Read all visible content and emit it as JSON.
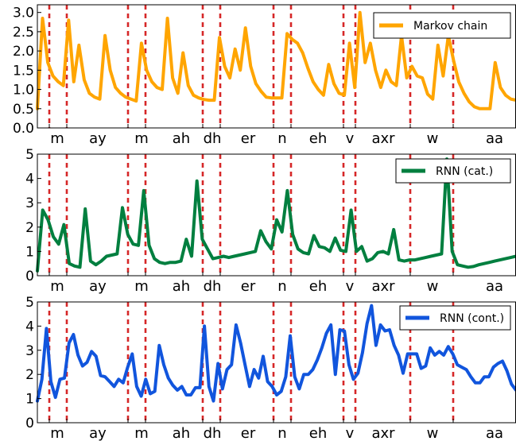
{
  "chart_data": [
    {
      "type": "line",
      "series": [
        {
          "name": "Markov chain",
          "color": "#ffa500"
        }
      ],
      "ylim": [
        0,
        3.2
      ],
      "yticks": [
        "0.0",
        "0.5",
        "1.0",
        "1.5",
        "2.0",
        "2.5",
        "3.0"
      ],
      "ytick_values": [
        0,
        0.5,
        1.0,
        1.5,
        2.0,
        2.5,
        3.0
      ],
      "legend_position": "top-right",
      "values": [
        0.5,
        2.85,
        1.7,
        1.35,
        1.2,
        1.1,
        2.8,
        1.2,
        2.15,
        1.25,
        0.9,
        0.8,
        0.75,
        2.4,
        1.5,
        1.05,
        0.9,
        0.8,
        0.75,
        0.7,
        2.2,
        1.5,
        1.2,
        1.05,
        1.0,
        2.85,
        1.3,
        0.9,
        1.95,
        1.1,
        0.85,
        0.78,
        0.74,
        0.72,
        0.72,
        2.35,
        1.6,
        1.3,
        2.05,
        1.5,
        2.6,
        1.6,
        1.15,
        0.95,
        0.8,
        0.78,
        0.78,
        0.78,
        2.45,
        2.3,
        2.2,
        1.95,
        1.55,
        1.2,
        1.0,
        0.85,
        1.65,
        1.15,
        0.9,
        0.85,
        2.2,
        1.05,
        3.0,
        1.7,
        2.2,
        1.5,
        1.05,
        1.5,
        1.2,
        1.1,
        2.4,
        1.3,
        1.6,
        1.35,
        1.3,
        0.88,
        0.75,
        2.15,
        1.35,
        2.4,
        1.75,
        1.2,
        0.9,
        0.68,
        0.55,
        0.5,
        0.5,
        0.5,
        1.7,
        1.05,
        0.85,
        0.75,
        0.72
      ]
    },
    {
      "type": "line",
      "series": [
        {
          "name": "RNN (cat.)",
          "color": "#007f3f"
        }
      ],
      "ylim": [
        0,
        5
      ],
      "yticks": [
        "0",
        "1",
        "2",
        "3",
        "4",
        "5"
      ],
      "ytick_values": [
        0,
        1,
        2,
        3,
        4,
        5
      ],
      "legend_position": "top-right",
      "values": [
        0.2,
        2.7,
        2.3,
        1.6,
        1.3,
        2.1,
        0.5,
        0.4,
        0.35,
        2.75,
        0.6,
        0.45,
        0.6,
        0.8,
        0.85,
        0.9,
        2.8,
        1.7,
        1.3,
        1.25,
        3.5,
        1.25,
        0.7,
        0.55,
        0.5,
        0.55,
        0.55,
        0.6,
        1.5,
        0.8,
        3.9,
        1.5,
        1.1,
        0.7,
        0.75,
        0.8,
        0.75,
        0.8,
        0.85,
        0.9,
        0.95,
        1.0,
        1.85,
        1.4,
        1.1,
        2.3,
        1.8,
        3.5,
        1.7,
        1.1,
        0.95,
        0.9,
        1.65,
        1.2,
        1.15,
        1.0,
        1.55,
        1.05,
        1.0,
        2.7,
        1.0,
        1.2,
        0.6,
        0.7,
        0.95,
        1.0,
        0.9,
        1.9,
        0.65,
        0.6,
        0.65,
        0.65,
        0.7,
        0.75,
        0.8,
        0.85,
        0.9,
        4.8,
        1.0,
        0.45,
        0.4,
        0.35,
        0.38,
        0.45,
        0.5,
        0.55,
        0.6,
        0.65,
        0.7,
        0.75,
        0.8
      ]
    },
    {
      "type": "line",
      "series": [
        {
          "name": "RNN (cont.)",
          "color": "#1155dd"
        }
      ],
      "ylim": [
        0,
        5
      ],
      "yticks": [
        "0",
        "1",
        "2",
        "3",
        "4",
        "5"
      ],
      "ytick_values": [
        0,
        1,
        2,
        3,
        4,
        5
      ],
      "legend_position": "top-right",
      "values": [
        0.9,
        1.8,
        3.9,
        1.7,
        1.05,
        1.8,
        1.85,
        3.3,
        3.65,
        2.8,
        2.35,
        2.5,
        2.95,
        2.75,
        1.95,
        1.9,
        1.7,
        1.5,
        1.8,
        1.65,
        2.3,
        2.85,
        1.5,
        1.1,
        1.8,
        1.2,
        1.3,
        3.2,
        2.4,
        1.85,
        1.55,
        1.35,
        1.5,
        1.15,
        1.15,
        1.45,
        1.45,
        4.0,
        1.5,
        0.9,
        2.45,
        1.4,
        2.2,
        2.4,
        4.05,
        3.3,
        2.4,
        1.5,
        2.2,
        1.85,
        2.75,
        1.7,
        1.5,
        1.15,
        1.3,
        1.9,
        3.6,
        1.9,
        1.4,
        2.0,
        2.0,
        2.2,
        2.6,
        3.1,
        3.7,
        4.05,
        2.0,
        3.85,
        3.8,
        2.4,
        1.8,
        2.05,
        2.9,
        4.1,
        4.85,
        3.2,
        4.05,
        3.8,
        3.85,
        3.2,
        2.8,
        2.05,
        2.85,
        2.85,
        2.85,
        2.25,
        2.35,
        3.1,
        2.8,
        2.95,
        2.8,
        3.15,
        2.85,
        2.4,
        2.3,
        2.2,
        1.9,
        1.65,
        1.65,
        1.9,
        1.9,
        2.3,
        2.45,
        2.55,
        2.15,
        1.6,
        1.35
      ]
    }
  ],
  "phonemes": [
    "m",
    "ay",
    "m",
    "ah",
    "dh",
    "er",
    "n",
    "eh",
    "v",
    "axr",
    "w",
    "aa"
  ],
  "boundary_color": "#d62728"
}
